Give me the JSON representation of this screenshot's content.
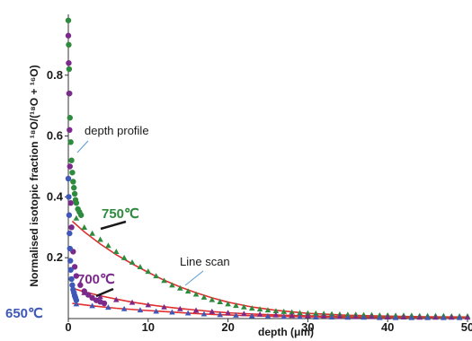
{
  "chart_data": {
    "type": "scatter",
    "xlabel": "depth (μm)",
    "ylabel": "Normalised isotopic fraction ¹⁸O/(¹⁸O + ¹⁶O)",
    "xlim": [
      0,
      50
    ],
    "ylim": [
      0,
      1.0
    ],
    "x_ticks": [
      0,
      10,
      20,
      30,
      40,
      50
    ],
    "y_ticks": [
      0.2,
      0.4,
      0.6,
      0.8
    ],
    "x_tick_labels": [
      "0",
      "10",
      "20",
      "30",
      "40",
      "50"
    ],
    "y_tick_labels": [
      "0.2",
      "0.4",
      "0.6",
      "0.8"
    ],
    "grid": false,
    "legend": "none",
    "series": [
      {
        "name": "750℃",
        "color": "#2e8b3e",
        "depth_profile": {
          "x": [
            0.0,
            0.05,
            0.1,
            0.15,
            0.2,
            0.3,
            0.4,
            0.5,
            0.6,
            0.7,
            0.8,
            0.9,
            1.0,
            1.2,
            1.4,
            1.6
          ],
          "y": [
            0.98,
            0.9,
            0.82,
            0.74,
            0.66,
            0.58,
            0.52,
            0.48,
            0.45,
            0.43,
            0.41,
            0.39,
            0.38,
            0.36,
            0.35,
            0.34
          ]
        },
        "line_scan": {
          "x": [
            1,
            2,
            3,
            4,
            5,
            6,
            7,
            8,
            9,
            10,
            11,
            12,
            13,
            14,
            15,
            16,
            17,
            18,
            19,
            20,
            21,
            22,
            23,
            24,
            25,
            26,
            27,
            28,
            29,
            30,
            31,
            32,
            33,
            34,
            35,
            36,
            37,
            38,
            39,
            40,
            41,
            42,
            43,
            44,
            45,
            46,
            47,
            48,
            49,
            50
          ],
          "y": [
            0.33,
            0.3,
            0.28,
            0.26,
            0.24,
            0.22,
            0.2,
            0.185,
            0.17,
            0.155,
            0.14,
            0.125,
            0.11,
            0.1,
            0.09,
            0.08,
            0.07,
            0.062,
            0.055,
            0.048,
            0.043,
            0.038,
            0.034,
            0.031,
            0.028,
            0.025,
            0.023,
            0.021,
            0.019,
            0.018,
            0.017,
            0.016,
            0.015,
            0.014,
            0.013,
            0.013,
            0.012,
            0.012,
            0.011,
            0.011,
            0.01,
            0.01,
            0.01,
            0.009,
            0.009,
            0.009,
            0.009,
            0.008,
            0.008,
            0.008
          ]
        },
        "fit": {
          "x": [
            0.5,
            2,
            4,
            6,
            8,
            10,
            12,
            14,
            16,
            18,
            20,
            23,
            26,
            30,
            35,
            40,
            45,
            50
          ],
          "y": [
            0.32,
            0.285,
            0.245,
            0.21,
            0.18,
            0.152,
            0.126,
            0.104,
            0.085,
            0.068,
            0.054,
            0.038,
            0.027,
            0.017,
            0.011,
            0.008,
            0.006,
            0.005
          ]
        }
      },
      {
        "name": "700℃",
        "color": "#7b2a8c",
        "depth_profile": {
          "x": [
            0.0,
            0.05,
            0.1,
            0.15,
            0.2,
            0.3,
            0.4,
            0.6,
            0.8,
            1.0,
            1.5,
            2.0,
            2.5,
            3.0,
            3.5,
            4.0,
            4.5
          ],
          "y": [
            0.93,
            0.84,
            0.74,
            0.62,
            0.5,
            0.38,
            0.3,
            0.22,
            0.17,
            0.14,
            0.11,
            0.09,
            0.078,
            0.068,
            0.06,
            0.055,
            0.05
          ]
        },
        "line_scan": {
          "x": [
            2,
            4,
            6,
            8,
            10,
            12,
            14,
            16,
            18,
            20,
            22,
            24,
            26,
            28,
            30,
            32,
            34,
            36,
            38,
            40,
            42,
            44,
            46,
            48,
            50
          ],
          "y": [
            0.085,
            0.072,
            0.062,
            0.053,
            0.045,
            0.038,
            0.032,
            0.027,
            0.023,
            0.019,
            0.016,
            0.014,
            0.012,
            0.01,
            0.009,
            0.008,
            0.007,
            0.006,
            0.006,
            0.005,
            0.005,
            0.004,
            0.004,
            0.004,
            0.004
          ]
        },
        "fit": {
          "x": [
            0.5,
            2,
            4,
            6,
            8,
            10,
            12,
            14,
            16,
            18,
            20,
            24,
            28,
            32,
            36,
            40,
            45,
            50
          ],
          "y": [
            0.1,
            0.088,
            0.075,
            0.064,
            0.054,
            0.046,
            0.039,
            0.033,
            0.028,
            0.023,
            0.019,
            0.014,
            0.01,
            0.008,
            0.006,
            0.005,
            0.004,
            0.004
          ]
        }
      },
      {
        "name": "650℃",
        "color": "#3f58b8",
        "depth_profile": {
          "x": [
            0.0,
            0.05,
            0.1,
            0.15,
            0.2,
            0.25,
            0.3,
            0.4,
            0.5,
            0.6,
            0.7,
            0.8,
            0.9,
            1.0
          ],
          "y": [
            0.46,
            0.4,
            0.34,
            0.28,
            0.23,
            0.19,
            0.16,
            0.13,
            0.11,
            0.095,
            0.085,
            0.075,
            0.068,
            0.06
          ]
        },
        "line_scan": {
          "x": [
            1,
            3,
            5,
            7,
            9,
            11,
            13,
            15,
            17,
            19,
            21,
            23,
            25,
            27,
            29,
            31,
            33,
            35,
            37,
            39,
            41,
            43,
            45,
            47,
            49
          ],
          "y": [
            0.048,
            0.042,
            0.037,
            0.032,
            0.028,
            0.024,
            0.021,
            0.018,
            0.015,
            0.013,
            0.011,
            0.009,
            0.008,
            0.007,
            0.006,
            0.005,
            0.005,
            0.004,
            0.004,
            0.003,
            0.003,
            0.003,
            0.003,
            0.003,
            0.003
          ]
        },
        "fit": {
          "x": [
            0.5,
            3,
            6,
            9,
            12,
            15,
            18,
            21,
            25,
            30,
            35,
            40,
            45,
            50
          ],
          "y": [
            0.05,
            0.042,
            0.034,
            0.028,
            0.023,
            0.018,
            0.014,
            0.011,
            0.008,
            0.006,
            0.004,
            0.003,
            0.003,
            0.002
          ]
        }
      }
    ],
    "fit_color": "#e03030",
    "annotations": [
      {
        "text": "depth profile",
        "color": "#1a1a1a",
        "pointer_color": "#5b9bd5"
      },
      {
        "text": "Line scan",
        "color": "#1a1a1a",
        "pointer_color": "#5b9bd5"
      },
      {
        "text": "750℃",
        "color": "#2e8b3e"
      },
      {
        "text": "700℃",
        "color": "#7b2a8c"
      },
      {
        "text": "650℃",
        "color": "#3f58b8"
      }
    ]
  }
}
